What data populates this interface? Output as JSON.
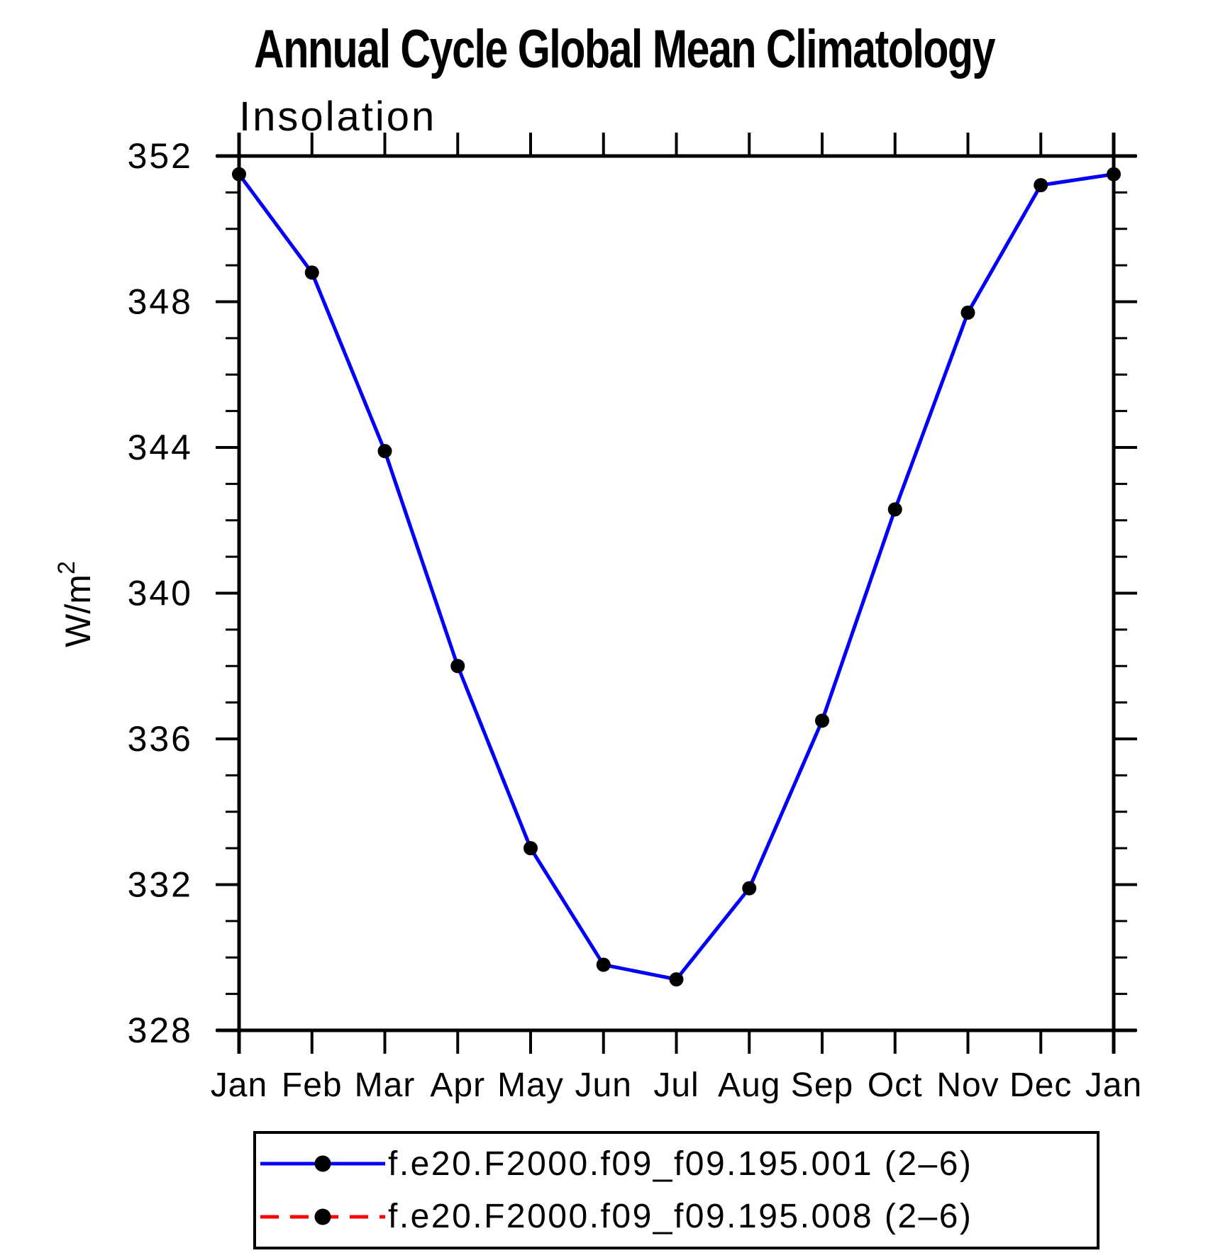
{
  "title": "Annual Cycle Global Mean Climatology",
  "subtitle": "Insolation",
  "ylabel": {
    "base": "W/m",
    "exponent": "2"
  },
  "colors": {
    "background": "#ffffff",
    "axis": "#000000",
    "marker": "#000000",
    "series1_line": "#0000ff",
    "series2_line": "#ff0000"
  },
  "chart_data": {
    "type": "line",
    "title": "Annual Cycle Global Mean Climatology",
    "subtitle": "Insolation",
    "ylabel": "W/m^2",
    "categories": [
      "Jan",
      "Feb",
      "Mar",
      "Apr",
      "May",
      "Jun",
      "Jul",
      "Aug",
      "Sep",
      "Oct",
      "Nov",
      "Dec",
      "Jan"
    ],
    "ylim": [
      328,
      352
    ],
    "ytick_major_step": 4,
    "ytick_minor_step": 1,
    "ytick_labels": [
      "352",
      "348",
      "344",
      "340",
      "336",
      "332",
      "328"
    ],
    "grid": false,
    "legend_position": "bottom",
    "series": [
      {
        "name": "f.e20.F2000.f09_f09.195.001 (2–6)",
        "line_color": "#0000ff",
        "line_style": "solid",
        "marker": "filled-circle",
        "marker_color": "#000000",
        "values": [
          351.5,
          348.8,
          343.9,
          338.0,
          333.0,
          329.8,
          329.4,
          331.9,
          336.5,
          342.3,
          347.7,
          351.2,
          351.5
        ]
      },
      {
        "name": "f.e20.F2000.f09_f09.195.008 (2–6)",
        "line_color": "#ff0000",
        "line_style": "dashed",
        "marker": "filled-circle",
        "marker_color": "#000000",
        "values": [
          351.5,
          348.8,
          343.9,
          338.0,
          333.0,
          329.8,
          329.4,
          331.9,
          336.5,
          342.3,
          347.7,
          351.2,
          351.5
        ]
      }
    ]
  },
  "legend": {
    "entries": [
      {
        "label": "f.e20.F2000.f09_f09.195.001 (2–6)"
      },
      {
        "label": "f.e20.F2000.f09_f09.195.008 (2–6)"
      }
    ]
  }
}
